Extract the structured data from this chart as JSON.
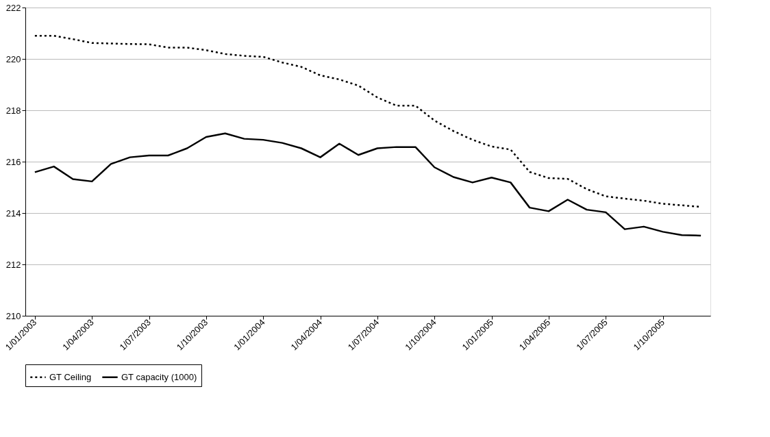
{
  "chart_data": {
    "type": "line",
    "categories": [
      "1/01/2003",
      null,
      null,
      "1/04/2003",
      null,
      null,
      "1/07/2003",
      null,
      null,
      "1/10/2003",
      null,
      null,
      "1/01/2004",
      null,
      null,
      "1/04/2004",
      null,
      null,
      "1/07/2004",
      null,
      null,
      "1/10/2004",
      null,
      null,
      "1/01/2005",
      null,
      null,
      "1/04/2005",
      null,
      null,
      "1/07/2005",
      null,
      null,
      "1/10/2005",
      null,
      null
    ],
    "series": [
      {
        "name": "GT Ceiling",
        "color": "#000000",
        "line_style": "dotted",
        "values": [
          220.9,
          220.9,
          220.77,
          220.62,
          220.6,
          220.58,
          220.57,
          220.44,
          220.44,
          220.34,
          220.19,
          220.12,
          220.08,
          219.86,
          219.69,
          219.36,
          219.2,
          218.96,
          218.5,
          218.18,
          218.18,
          217.6,
          217.19,
          216.85,
          216.59,
          216.47,
          215.6,
          215.36,
          215.33,
          214.93,
          214.65,
          214.56,
          214.48,
          214.36,
          214.3,
          214.24
        ]
      },
      {
        "name": "GT capacity (1000)",
        "color": "#000000",
        "line_style": "solid",
        "values": [
          215.59,
          215.81,
          215.32,
          215.23,
          215.91,
          216.17,
          216.24,
          216.24,
          216.52,
          216.96,
          217.1,
          216.89,
          216.85,
          216.73,
          216.52,
          216.17,
          216.7,
          216.26,
          216.52,
          216.57,
          216.57,
          215.78,
          215.4,
          215.19,
          215.38,
          215.19,
          214.21,
          214.07,
          214.52,
          214.13,
          214.03,
          213.37,
          213.47,
          213.27,
          213.14,
          213.12
        ]
      }
    ],
    "ylim": [
      210,
      222
    ],
    "yticks": [
      210,
      212,
      214,
      216,
      218,
      220,
      222
    ],
    "grid": "y",
    "legend": "bottom",
    "marker": "none"
  }
}
